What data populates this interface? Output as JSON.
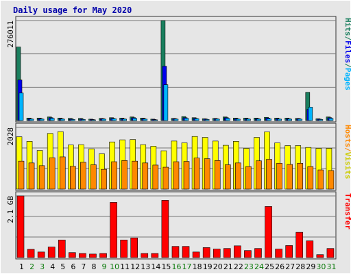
{
  "chart_data": {
    "type": "bar",
    "title": "Daily usage for May 2020",
    "colors": {
      "background": "#e6e6e6",
      "frame": "#333333",
      "grid": "#777777",
      "hits": "#1a7f5e",
      "files": "#0000ee",
      "pages": "#00b4ff",
      "visits": "#ffff00",
      "hosts": "#ff8800",
      "transfer": "#ff0000",
      "title": "#0000aa",
      "weekday_label": "#000000",
      "weekend_label": "#0a7a0a"
    },
    "categories": [
      "1",
      "2",
      "3",
      "4",
      "5",
      "6",
      "7",
      "8",
      "9",
      "10",
      "11",
      "12",
      "13",
      "14",
      "15",
      "16",
      "17",
      "18",
      "19",
      "20",
      "21",
      "22",
      "23",
      "24",
      "25",
      "26",
      "27",
      "28",
      "29",
      "30",
      "31"
    ],
    "weekend_days": [
      "2",
      "3",
      "9",
      "10",
      "16",
      "17",
      "23",
      "24",
      "30",
      "31"
    ],
    "panels": [
      {
        "id": "hits-files-pages",
        "ymax_label": "276011",
        "ymax": 276011,
        "ylabel_parts": [
          {
            "text": "Hits",
            "color": "#1a7f5e"
          },
          {
            "text": "/",
            "color": "#1a7f5e"
          },
          {
            "text": "Files",
            "color": "#0000ee"
          },
          {
            "text": "/",
            "color": "#1a7f5e"
          },
          {
            "text": "Pages",
            "color": "#00b4ff"
          }
        ],
        "series": [
          {
            "name": "Hits",
            "color": "#1a7f5e",
            "values": [
              203000,
              7000,
              7000,
              10000,
              7000,
              6000,
              6000,
              4000,
              6000,
              8000,
              7000,
              10000,
              7000,
              4000,
              276011,
              6000,
              11000,
              8000,
              5000,
              6000,
              10000,
              7000,
              7000,
              7000,
              9000,
              7000,
              7000,
              6000,
              78000,
              5000,
              10000
            ]
          },
          {
            "name": "Files",
            "color": "#0000ee",
            "values": [
              112000,
              5000,
              5000,
              8000,
              5000,
              4000,
              4000,
              3000,
              5000,
              6000,
              5000,
              8000,
              5000,
              3000,
              150000,
              5000,
              8000,
              6000,
              4000,
              5000,
              8000,
              5000,
              5000,
              5000,
              7000,
              5000,
              5000,
              5000,
              31000,
              4000,
              8000
            ]
          },
          {
            "name": "Pages",
            "color": "#00b4ff",
            "values": [
              76000,
              4000,
              4000,
              6000,
              4000,
              3000,
              3000,
              2000,
              4000,
              5000,
              4000,
              6000,
              4000,
              2000,
              99000,
              4000,
              6000,
              5000,
              3000,
              4000,
              6000,
              4000,
              4000,
              4000,
              5000,
              4000,
              4000,
              4000,
              37000,
              3000,
              6000
            ]
          }
        ]
      },
      {
        "id": "hosts-visits",
        "ymax_label": "2028",
        "ymax": 2028,
        "ylabel_parts": [
          {
            "text": "Hosts",
            "color": "#ff8800"
          },
          {
            "text": "/",
            "color": "#ff8800"
          },
          {
            "text": "Visits",
            "color": "#cccc00"
          }
        ],
        "series": [
          {
            "name": "Visits",
            "color": "#ffff00",
            "values": [
              1720,
              1570,
              1270,
              1830,
              1890,
              1450,
              1460,
              1320,
              1160,
              1550,
              1620,
              1630,
              1460,
              1410,
              1260,
              1580,
              1520,
              1730,
              1700,
              1580,
              1440,
              1570,
              1340,
              1700,
              1880,
              1520,
              1430,
              1430,
              1370,
              1340,
              1340
            ]
          },
          {
            "name": "Hosts",
            "color": "#ff8800",
            "values": [
              920,
              860,
              770,
              1030,
              1060,
              750,
              880,
              800,
              650,
              900,
              940,
              920,
              860,
              790,
              720,
              900,
              910,
              1020,
              1000,
              940,
              800,
              860,
              740,
              930,
              980,
              850,
              810,
              850,
              740,
              630,
              610
            ]
          }
        ]
      },
      {
        "id": "transfer",
        "ymax_label": "2.1 GB",
        "ymax": 2.1,
        "ylabel_parts": [
          {
            "text": "Transfer",
            "color": "#ff0000"
          }
        ],
        "series": [
          {
            "name": "Transfer",
            "color": "#ff0000",
            "values": [
              2.1,
              0.28,
              0.19,
              0.36,
              0.6,
              0.17,
              0.14,
              0.12,
              0.14,
              1.88,
              0.6,
              0.67,
              0.14,
              0.14,
              1.95,
              0.38,
              0.38,
              0.19,
              0.34,
              0.29,
              0.31,
              0.4,
              0.24,
              0.31,
              1.74,
              0.29,
              0.41,
              0.86,
              0.57,
              0.1,
              0.31
            ]
          }
        ]
      }
    ],
    "axis_labels": [
      "1",
      "2",
      "3",
      "4",
      "5",
      "6",
      "7",
      "8",
      "9",
      "10",
      "11",
      "12",
      "13",
      "14",
      "15",
      "16",
      "17",
      "18",
      "19",
      "20",
      "21",
      "22",
      "23",
      "24",
      "25",
      "26",
      "27",
      "28",
      "29",
      "30",
      "31"
    ]
  }
}
